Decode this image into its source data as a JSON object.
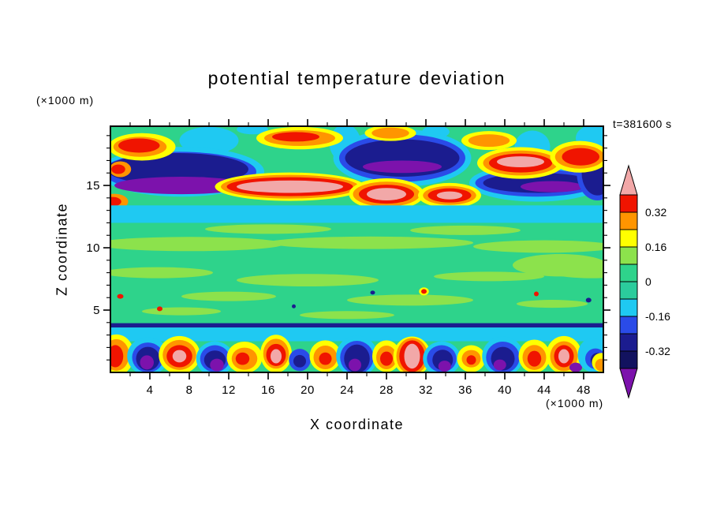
{
  "chart_data": {
    "type": "heatmap",
    "title": "potential temperature deviation",
    "time_annotation": "t=381600 s",
    "x_axis": {
      "label": "X coordinate",
      "unit": "(×1000 m)",
      "range": [
        0,
        50
      ],
      "major_ticks": [
        4,
        8,
        12,
        16,
        20,
        24,
        28,
        32,
        36,
        40,
        44,
        48
      ],
      "minor_step": 2
    },
    "y_axis": {
      "label": "Z coordinate",
      "unit": "(×1000 m)",
      "range": [
        0,
        19.75
      ],
      "major_ticks": [
        5,
        10,
        15
      ],
      "minor_step": 1
    },
    "colorbar": {
      "tick_labels": [
        "0.32",
        "0.16",
        "0",
        "-0.16",
        "-0.32"
      ],
      "level_step": 0.08,
      "band_colors": [
        "r",
        "o",
        "y",
        "lg",
        "g",
        "g2",
        "c",
        "b",
        "n",
        "n2"
      ],
      "arrow_top": "k",
      "arrow_bottom": "p"
    },
    "palette": {
      "g": "#2ED38B",
      "g2": "#2BCC9C",
      "lg": "#8CE24C",
      "c": "#1FC9F2",
      "b": "#2A4BE8",
      "n": "#1B1C8F",
      "n2": "#12125F",
      "p": "#7C12AC",
      "y": "#FFFF00",
      "o": "#FF9500",
      "r": "#F01400",
      "k": "#F2A8A8"
    },
    "field_description": "Vertical cross-section of potential temperature deviation: turbulent warm/cold anomalies (pink/red cores, navy/purple pools) in a layer near z=13-19 km, a full-width cyan band near z=12-13.4 km, a quiescent green interior (z=4-12) with light-green mottling and tiny specks, a thin navy line near z=3.8 km over a cyan band (z=2.5-3.6), and alternating warm plumes and cold pools in the boundary layer below z=3 km.",
    "features": {
      "background": "g",
      "shapes": [
        [
          "e",
          10.0,
          18.6,
          3.0,
          1.1,
          "c"
        ],
        [
          "e",
          23.8,
          18.4,
          1.6,
          1.5,
          "c"
        ],
        [
          "e",
          42.8,
          18.1,
          1.8,
          1.3,
          "c"
        ],
        [
          "e",
          49.2,
          18.8,
          2.0,
          1.1,
          "c"
        ],
        [
          "e",
          33.0,
          19.3,
          1.4,
          0.5,
          "c"
        ],
        [
          "e",
          14.4,
          19.5,
          1.6,
          0.4,
          "c"
        ],
        [
          "e",
          7.2,
          16.1,
          8.4,
          2.0,
          "c"
        ],
        [
          "e",
          7.0,
          16.1,
          7.8,
          1.6,
          "b"
        ],
        [
          "e",
          6.8,
          16.3,
          7.2,
          1.3,
          "n"
        ],
        [
          "e",
          7.2,
          15.0,
          6.8,
          0.7,
          "p"
        ],
        [
          "e",
          1.0,
          16.3,
          1.1,
          0.63,
          "o"
        ],
        [
          "e",
          0.8,
          16.3,
          0.7,
          0.38,
          "r"
        ],
        [
          "e",
          29.6,
          17.2,
          7.0,
          2.3,
          "c"
        ],
        [
          "e",
          29.6,
          17.2,
          6.4,
          1.9,
          "b"
        ],
        [
          "e",
          29.6,
          17.2,
          5.8,
          1.5,
          "n"
        ],
        [
          "e",
          29.6,
          16.5,
          4.0,
          0.5,
          "p"
        ],
        [
          "e",
          43.2,
          15.2,
          6.8,
          1.5,
          "c"
        ],
        [
          "e",
          43.2,
          15.2,
          6.2,
          1.1,
          "b"
        ],
        [
          "e",
          43.4,
          15.2,
          5.6,
          0.8,
          "n"
        ],
        [
          "e",
          44.8,
          14.9,
          3.2,
          0.45,
          "p"
        ],
        [
          "e",
          49.4,
          16.0,
          2.1,
          2.2,
          "b"
        ],
        [
          "e",
          49.4,
          16.0,
          1.6,
          1.8,
          "n"
        ],
        [
          "e",
          3.2,
          18.1,
          3.4,
          1.1,
          "y"
        ],
        [
          "e",
          3.0,
          18.1,
          2.7,
          0.8,
          "o"
        ],
        [
          "e",
          2.9,
          18.2,
          2.1,
          0.57,
          "r"
        ],
        [
          "e",
          19.2,
          18.8,
          4.4,
          0.9,
          "y"
        ],
        [
          "e",
          19.2,
          18.8,
          3.6,
          0.63,
          "o"
        ],
        [
          "e",
          18.8,
          18.9,
          2.4,
          0.38,
          "r"
        ],
        [
          "e",
          28.4,
          19.2,
          2.6,
          0.63,
          "y"
        ],
        [
          "e",
          28.4,
          19.2,
          1.9,
          0.44,
          "o"
        ],
        [
          "e",
          38.4,
          18.6,
          2.8,
          0.76,
          "y"
        ],
        [
          "e",
          38.4,
          18.6,
          2.1,
          0.5,
          "o"
        ],
        [
          "e",
          18.2,
          14.9,
          7.6,
          1.14,
          "y"
        ],
        [
          "e",
          18.2,
          14.9,
          7.0,
          0.95,
          "o"
        ],
        [
          "e",
          18.2,
          14.9,
          6.4,
          0.76,
          "r"
        ],
        [
          "e",
          18.2,
          14.9,
          5.4,
          0.5,
          "k"
        ],
        [
          "e",
          28.0,
          14.3,
          3.8,
          1.27,
          "y"
        ],
        [
          "e",
          28.0,
          14.3,
          3.4,
          1.0,
          "o"
        ],
        [
          "e",
          28.0,
          14.3,
          2.8,
          0.76,
          "r"
        ],
        [
          "e",
          28.0,
          14.3,
          2.0,
          0.5,
          "k"
        ],
        [
          "e",
          34.4,
          14.2,
          3.2,
          1.0,
          "y"
        ],
        [
          "e",
          34.4,
          14.2,
          2.7,
          0.76,
          "o"
        ],
        [
          "e",
          34.4,
          14.2,
          2.2,
          0.57,
          "r"
        ],
        [
          "e",
          34.4,
          14.2,
          1.3,
          0.32,
          "k"
        ],
        [
          "e",
          41.6,
          16.8,
          4.4,
          1.27,
          "y"
        ],
        [
          "e",
          41.6,
          16.8,
          3.8,
          1.0,
          "o"
        ],
        [
          "e",
          41.6,
          16.8,
          3.2,
          0.76,
          "r"
        ],
        [
          "e",
          41.6,
          16.9,
          2.4,
          0.44,
          "k"
        ],
        [
          "e",
          47.6,
          17.3,
          3.0,
          1.27,
          "y"
        ],
        [
          "e",
          47.6,
          17.3,
          2.5,
          0.95,
          "o"
        ],
        [
          "e",
          47.7,
          17.3,
          1.9,
          0.7,
          "r"
        ],
        [
          "e",
          0.4,
          13.7,
          1.4,
          0.63,
          "o"
        ],
        [
          "e",
          0.2,
          13.7,
          0.9,
          0.38,
          "r"
        ],
        [
          "r",
          0,
          12.0,
          50,
          13.4,
          "c"
        ],
        [
          "r",
          0,
          3.6,
          50,
          3.95,
          "n"
        ],
        [
          "r",
          0,
          2.5,
          50,
          3.6,
          "c"
        ],
        [
          "e",
          8.0,
          10.3,
          9.6,
          0.57,
          "lg"
        ],
        [
          "e",
          26.4,
          10.4,
          10.4,
          0.5,
          "lg"
        ],
        [
          "e",
          44.0,
          10.1,
          7.2,
          0.5,
          "lg"
        ],
        [
          "e",
          16.0,
          11.5,
          6.4,
          0.38,
          "lg"
        ],
        [
          "e",
          36.0,
          11.4,
          5.6,
          0.38,
          "lg"
        ],
        [
          "e",
          4.8,
          8.0,
          5.6,
          0.44,
          "lg"
        ],
        [
          "e",
          20.0,
          7.4,
          7.2,
          0.5,
          "lg"
        ],
        [
          "e",
          38.4,
          7.7,
          5.6,
          0.38,
          "lg"
        ],
        [
          "e",
          48.8,
          8.0,
          4.0,
          0.44,
          "lg"
        ],
        [
          "e",
          12.0,
          6.1,
          4.8,
          0.38,
          "lg"
        ],
        [
          "e",
          30.4,
          5.8,
          6.4,
          0.44,
          "lg"
        ],
        [
          "e",
          44.8,
          5.5,
          3.6,
          0.32,
          "lg"
        ],
        [
          "e",
          7.2,
          4.9,
          4.0,
          0.32,
          "lg"
        ],
        [
          "e",
          24.0,
          4.6,
          4.8,
          0.32,
          "lg"
        ],
        [
          "e",
          45.6,
          8.6,
          4.8,
          0.9,
          "lg"
        ],
        [
          "e",
          31.8,
          6.5,
          0.5,
          0.32,
          "y"
        ],
        [
          "e",
          31.8,
          6.5,
          0.28,
          0.19,
          "r"
        ],
        [
          "e",
          1.0,
          6.1,
          0.32,
          0.19,
          "r"
        ],
        [
          "e",
          5.0,
          5.1,
          0.28,
          0.19,
          "r"
        ],
        [
          "e",
          43.2,
          6.3,
          0.24,
          0.19,
          "r"
        ],
        [
          "e",
          26.6,
          6.4,
          0.24,
          0.16,
          "n"
        ],
        [
          "e",
          48.5,
          5.8,
          0.28,
          0.19,
          "n"
        ],
        [
          "e",
          18.6,
          5.3,
          0.2,
          0.16,
          "n"
        ],
        [
          "e",
          0.6,
          1.4,
          1.8,
          1.65,
          "y"
        ],
        [
          "e",
          0.6,
          1.4,
          1.3,
          1.27,
          "o"
        ],
        [
          "e",
          0.5,
          1.3,
          0.8,
          0.89,
          "r"
        ],
        [
          "e",
          3.8,
          1.3,
          2.1,
          1.52,
          "c"
        ],
        [
          "e",
          3.8,
          1.2,
          1.6,
          1.2,
          "b"
        ],
        [
          "e",
          3.8,
          1.1,
          1.2,
          0.95,
          "n"
        ],
        [
          "e",
          3.7,
          0.8,
          0.7,
          0.57,
          "p"
        ],
        [
          "e",
          7.0,
          1.4,
          2.1,
          1.52,
          "y"
        ],
        [
          "e",
          7.0,
          1.4,
          1.7,
          1.2,
          "o"
        ],
        [
          "e",
          7.0,
          1.3,
          1.3,
          0.89,
          "r"
        ],
        [
          "e",
          7.0,
          1.3,
          0.7,
          0.5,
          "k"
        ],
        [
          "e",
          10.6,
          1.1,
          1.9,
          1.39,
          "c"
        ],
        [
          "e",
          10.6,
          1.1,
          1.5,
          1.08,
          "b"
        ],
        [
          "e",
          10.6,
          1.0,
          1.1,
          0.76,
          "n"
        ],
        [
          "e",
          10.8,
          0.6,
          0.7,
          0.5,
          "p"
        ],
        [
          "e",
          13.6,
          1.2,
          1.8,
          1.27,
          "y"
        ],
        [
          "e",
          13.6,
          1.1,
          1.3,
          0.89,
          "o"
        ],
        [
          "e",
          13.4,
          1.1,
          0.7,
          0.5,
          "r"
        ],
        [
          "e",
          16.8,
          1.5,
          1.6,
          1.52,
          "y"
        ],
        [
          "e",
          16.8,
          1.5,
          1.3,
          1.2,
          "o"
        ],
        [
          "e",
          16.8,
          1.4,
          1.0,
          0.89,
          "r"
        ],
        [
          "e",
          16.8,
          1.3,
          0.56,
          0.57,
          "k"
        ],
        [
          "e",
          19.2,
          1.0,
          1.1,
          0.89,
          "b"
        ],
        [
          "e",
          19.2,
          0.9,
          0.64,
          0.5,
          "n"
        ],
        [
          "e",
          21.8,
          1.3,
          1.6,
          1.27,
          "y"
        ],
        [
          "e",
          21.8,
          1.2,
          1.2,
          0.95,
          "o"
        ],
        [
          "e",
          21.8,
          1.1,
          0.64,
          0.5,
          "r"
        ],
        [
          "e",
          25.0,
          1.3,
          2.1,
          1.65,
          "c"
        ],
        [
          "e",
          25.0,
          1.2,
          1.7,
          1.33,
          "b"
        ],
        [
          "e",
          25.0,
          1.1,
          1.3,
          1.14,
          "n"
        ],
        [
          "e",
          24.8,
          0.6,
          0.64,
          0.5,
          "p"
        ],
        [
          "e",
          28.0,
          1.3,
          1.44,
          1.27,
          "y"
        ],
        [
          "e",
          28.0,
          1.2,
          1.04,
          0.95,
          "o"
        ],
        [
          "e",
          28.0,
          1.1,
          0.64,
          0.57,
          "r"
        ],
        [
          "e",
          30.6,
          1.3,
          1.9,
          1.58,
          "y"
        ],
        [
          "e",
          30.6,
          1.3,
          1.6,
          1.46,
          "o"
        ],
        [
          "e",
          30.6,
          1.3,
          1.3,
          1.27,
          "r"
        ],
        [
          "e",
          30.6,
          1.3,
          0.8,
          1.0,
          "k"
        ],
        [
          "e",
          33.6,
          1.1,
          1.9,
          1.39,
          "c"
        ],
        [
          "e",
          33.6,
          1.1,
          1.5,
          1.08,
          "b"
        ],
        [
          "e",
          33.7,
          1.0,
          1.04,
          0.82,
          "n"
        ],
        [
          "e",
          33.9,
          0.5,
          0.64,
          0.44,
          "p"
        ],
        [
          "e",
          36.6,
          1.1,
          1.44,
          1.08,
          "y"
        ],
        [
          "e",
          36.6,
          1.1,
          0.96,
          0.7,
          "o"
        ],
        [
          "e",
          36.6,
          1.0,
          0.48,
          0.38,
          "r"
        ],
        [
          "e",
          39.8,
          1.3,
          2.1,
          1.58,
          "c"
        ],
        [
          "e",
          39.8,
          1.2,
          1.7,
          1.27,
          "b"
        ],
        [
          "e",
          39.8,
          1.1,
          1.2,
          0.95,
          "n"
        ],
        [
          "e",
          39.5,
          0.6,
          0.64,
          0.44,
          "p"
        ],
        [
          "e",
          43.0,
          1.3,
          1.6,
          1.33,
          "y"
        ],
        [
          "e",
          43.0,
          1.2,
          1.2,
          1.0,
          "o"
        ],
        [
          "e",
          43.0,
          1.1,
          0.7,
          0.63,
          "r"
        ],
        [
          "e",
          46.0,
          1.4,
          1.8,
          1.52,
          "y"
        ],
        [
          "e",
          46.0,
          1.3,
          1.4,
          1.2,
          "o"
        ],
        [
          "e",
          46.0,
          1.3,
          1.0,
          0.89,
          "r"
        ],
        [
          "e",
          46.0,
          1.3,
          0.56,
          0.57,
          "k"
        ],
        [
          "e",
          47.2,
          0.4,
          0.64,
          0.38,
          "p"
        ],
        [
          "e",
          49.0,
          1.4,
          1.6,
          1.39,
          "c"
        ],
        [
          "e",
          49.2,
          1.1,
          1.04,
          0.82,
          "b"
        ],
        [
          "e",
          49.4,
          1.0,
          0.7,
          0.57,
          "n"
        ],
        [
          "e",
          49.8,
          0.8,
          0.96,
          0.76,
          "y"
        ],
        [
          "e",
          49.8,
          0.6,
          0.64,
          0.5,
          "o"
        ]
      ]
    }
  }
}
